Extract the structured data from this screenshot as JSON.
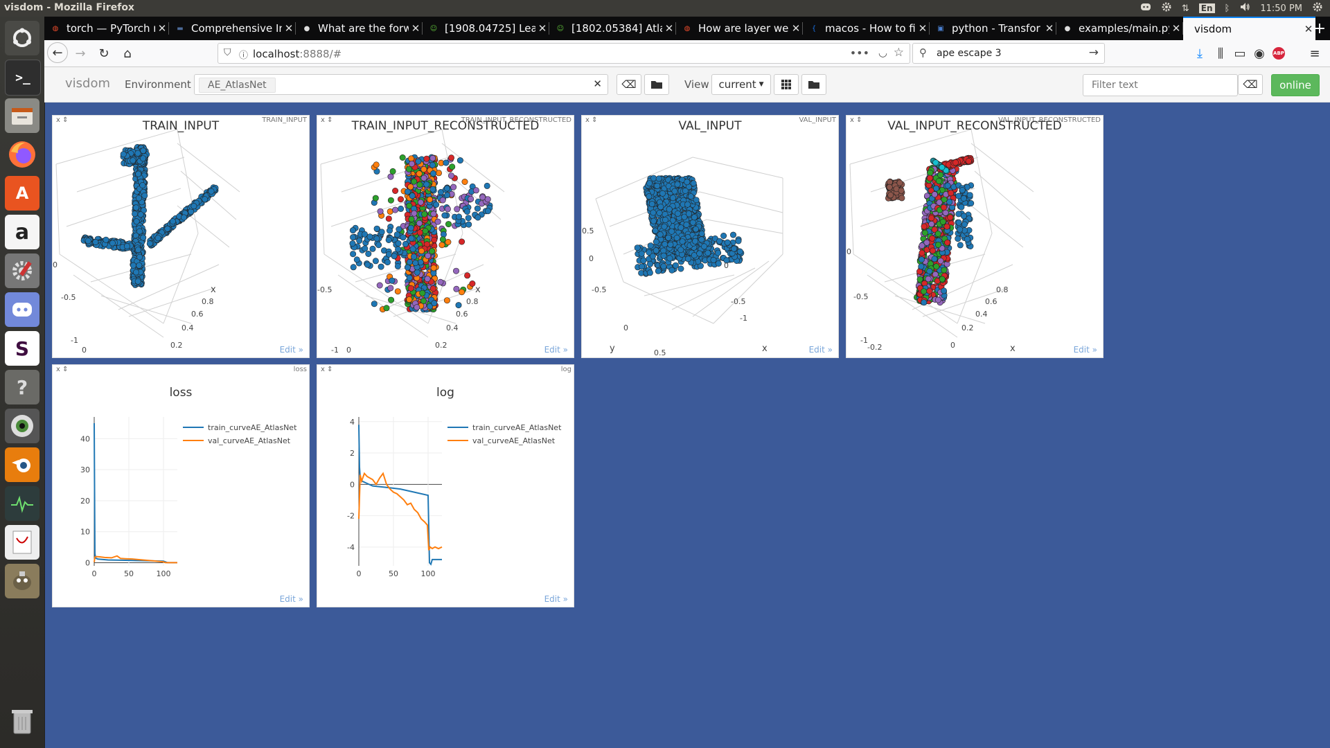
{
  "os": {
    "window_title": "visdom - Mozilla Firefox",
    "tray": {
      "keyboard": "En",
      "clock": "11:50 PM"
    }
  },
  "launcher": {
    "items": [
      "ubuntu-dash",
      "terminal",
      "files",
      "firefox",
      "software-center",
      "amazon",
      "system-settings",
      "discord",
      "slack",
      "help",
      "eye-app",
      "blender",
      "system-monitor",
      "document-viewer",
      "gimp",
      "trash"
    ]
  },
  "browser": {
    "tabs": [
      {
        "title": "torch — PyTorch m",
        "icon": "pytorch-icon"
      },
      {
        "title": "Comprehensive In",
        "icon": "page-icon"
      },
      {
        "title": "What are the forw",
        "icon": "github-icon"
      },
      {
        "title": "[1908.04725] Lear",
        "icon": "arxiv-icon"
      },
      {
        "title": "[1802.05384] Atla",
        "icon": "arxiv-icon"
      },
      {
        "title": "How are layer wei",
        "icon": "pytorch-icon"
      },
      {
        "title": "macos - How to fi",
        "icon": "stackoverflow-icon"
      },
      {
        "title": "python - Transfor",
        "icon": "stackexchange-icon"
      },
      {
        "title": "examples/main.py",
        "icon": "github-icon"
      },
      {
        "title": "visdom",
        "icon": "none",
        "active": true
      }
    ],
    "url_host": "localhost",
    "url_rest": ":8888/#",
    "search_value": "ape escape 3"
  },
  "visdom": {
    "brand": "visdom",
    "environment_label": "Environment",
    "environment_tag": "AE_AtlasNet",
    "view_label": "View",
    "view_value": "current",
    "filter_placeholder": "Filter text",
    "online_label": "online",
    "edit_label": "Edit »",
    "pane_controls": "x ⇕",
    "panes": [
      {
        "id": "TRAIN_INPUT",
        "title": "TRAIN_INPUT",
        "type": "scatter3d",
        "axis_labels": [
          "0",
          "-0.5",
          "-1",
          "0",
          "0.2",
          "0.4",
          "0.6",
          "0.8",
          "x"
        ],
        "series_colors": [
          "#1f77b4"
        ]
      },
      {
        "id": "TRAIN_INPUT_RECONSTRUCTED",
        "title": "TRAIN_INPUT_RECONSTRUCTED",
        "type": "scatter3d",
        "axis_labels": [
          "-0.5",
          "-1",
          "0",
          "0.2",
          "0.4",
          "0.6",
          "0.8",
          "x"
        ],
        "series_colors": [
          "#1f77b4",
          "#2ca02c",
          "#d62728",
          "#ff7f0e",
          "#9467bd"
        ]
      },
      {
        "id": "VAL_INPUT",
        "title": "VAL_INPUT",
        "type": "scatter3d",
        "axis_labels": [
          "0.5",
          "0",
          "-0.5",
          "0",
          "0.5",
          "0",
          "-0.5",
          "-1",
          "y",
          "x"
        ],
        "series_colors": [
          "#1f77b4"
        ]
      },
      {
        "id": "VAL_INPUT_RECONSTRUCTED",
        "title": "VAL_INPUT_RECONSTRUCTED",
        "type": "scatter3d",
        "axis_labels": [
          "0",
          "-0.5",
          "-1",
          "-0.2",
          "0",
          "0.2",
          "0.4",
          "0.6",
          "0.8",
          "x"
        ],
        "series_colors": [
          "#1f77b4",
          "#2ca02c",
          "#d62728",
          "#9467bd",
          "#17becf",
          "#8c564b"
        ]
      }
    ]
  },
  "chart_data": [
    {
      "id": "loss",
      "type": "line",
      "title": "loss",
      "xlim": [
        0,
        120
      ],
      "ylim": [
        -1,
        47
      ],
      "x_ticks": [
        0,
        50,
        100
      ],
      "y_ticks": [
        0,
        10,
        20,
        30,
        40
      ],
      "legend": "top-right",
      "grid": true,
      "series": [
        {
          "name": "train_curveAE_AtlasNet",
          "color": "#1f77b4",
          "x": [
            0,
            1,
            2,
            5,
            10,
            20,
            40,
            60,
            80,
            100,
            106,
            110,
            120
          ],
          "y": [
            45,
            3,
            1.5,
            1.2,
            1.1,
            0.9,
            0.8,
            0.7,
            0.6,
            0.5,
            0.02,
            0.03,
            0.03
          ]
        },
        {
          "name": "val_curveAE_AtlasNet",
          "color": "#ff7f0e",
          "x": [
            0,
            1,
            3,
            8,
            15,
            25,
            33,
            38,
            45,
            55,
            70,
            85,
            100,
            103,
            110,
            120
          ],
          "y": [
            0.2,
            1.8,
            2.0,
            1.9,
            1.7,
            1.6,
            2.2,
            1.4,
            1.3,
            1.2,
            0.9,
            0.6,
            0.3,
            0.02,
            0.02,
            0.02
          ]
        }
      ]
    },
    {
      "id": "log",
      "type": "line",
      "title": "log",
      "xlim": [
        0,
        120
      ],
      "ylim": [
        -5.2,
        4.3
      ],
      "x_ticks": [
        0,
        50,
        100
      ],
      "y_ticks": [
        -4,
        -2,
        0,
        2,
        4
      ],
      "legend": "top-right",
      "grid": true,
      "series": [
        {
          "name": "train_curveAE_AtlasNet",
          "color": "#1f77b4",
          "x": [
            0,
            1,
            2,
            5,
            10,
            20,
            40,
            60,
            80,
            100,
            102,
            104,
            106,
            108,
            120
          ],
          "y": [
            3.8,
            1.1,
            0.4,
            0.2,
            0.1,
            -0.1,
            -0.2,
            -0.3,
            -0.5,
            -0.7,
            -5.0,
            -5.1,
            -4.8,
            -4.8,
            -4.8
          ]
        },
        {
          "name": "val_curveAE_AtlasNet",
          "color": "#ff7f0e",
          "x": [
            0,
            2,
            4,
            8,
            12,
            20,
            25,
            30,
            35,
            40,
            45,
            50,
            55,
            60,
            65,
            70,
            75,
            80,
            85,
            90,
            95,
            99,
            101,
            103,
            106,
            110,
            115,
            120
          ],
          "y": [
            -2.2,
            0.6,
            0.2,
            0.7,
            0.5,
            0.3,
            0.0,
            0.4,
            0.7,
            0.0,
            -0.3,
            -0.5,
            -0.6,
            -0.8,
            -1.0,
            -1.3,
            -1.2,
            -1.6,
            -1.8,
            -2.2,
            -2.4,
            -2.6,
            -4.2,
            -4.0,
            -4.1,
            -4.0,
            -4.1,
            -4.0
          ]
        }
      ]
    }
  ]
}
